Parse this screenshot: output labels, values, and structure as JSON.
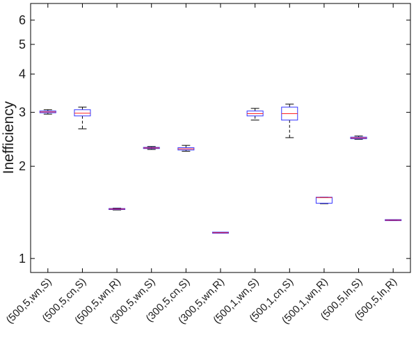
{
  "chart_data": {
    "type": "box",
    "ylabel": "Inefficiency",
    "yscale": "log",
    "ylim": [
      0.9,
      6.8
    ],
    "yticks": [
      1,
      2,
      3,
      4,
      5,
      6
    ],
    "ytick_labels": [
      "1",
      "2",
      "3",
      "4",
      "5",
      "6"
    ],
    "categories": [
      "(500,5,wn,S)",
      "(500,5,cn,S)",
      "(500,5,wn,R)",
      "(300,5,wn,S)",
      "(300,5,cn,S)",
      "(300,5,wn,R)",
      "(500,1,wn,S)",
      "(500,1,cn,S)",
      "(500,1,wn,R)",
      "(500,5,ln,S)",
      "(500,5,ln,R)"
    ],
    "boxes": [
      {
        "whislo": 2.96,
        "q1": 2.99,
        "med": 3.01,
        "q3": 3.03,
        "whishi": 3.06
      },
      {
        "whislo": 2.65,
        "q1": 2.92,
        "med": 2.98,
        "q3": 3.06,
        "whishi": 3.12
      },
      {
        "whislo": 1.44,
        "q1": 1.445,
        "med": 1.45,
        "q3": 1.455,
        "whishi": 1.46
      },
      {
        "whislo": 2.27,
        "q1": 2.285,
        "med": 2.295,
        "q3": 2.305,
        "whishi": 2.32
      },
      {
        "whislo": 2.24,
        "q1": 2.26,
        "med": 2.28,
        "q3": 2.3,
        "whishi": 2.34
      },
      {
        "whislo": 1.21,
        "q1": 1.212,
        "med": 1.214,
        "q3": 1.216,
        "whishi": 1.218
      },
      {
        "whislo": 2.83,
        "q1": 2.92,
        "med": 2.97,
        "q3": 3.03,
        "whishi": 3.09
      },
      {
        "whislo": 2.48,
        "q1": 2.83,
        "med": 2.97,
        "q3": 3.12,
        "whishi": 3.19
      },
      {
        "whislo": 1.51,
        "q1": 1.515,
        "med": 1.58,
        "q3": 1.585,
        "whishi": 1.585
      },
      {
        "whislo": 2.45,
        "q1": 2.46,
        "med": 2.475,
        "q3": 2.49,
        "whishi": 2.51
      },
      {
        "whislo": 1.33,
        "q1": 1.332,
        "med": 1.334,
        "q3": 1.336,
        "whishi": 1.338
      }
    ],
    "colors": {
      "box": "#3333ff",
      "median": "#ff2222",
      "whisker": "#000000",
      "axis": "#000000"
    }
  }
}
